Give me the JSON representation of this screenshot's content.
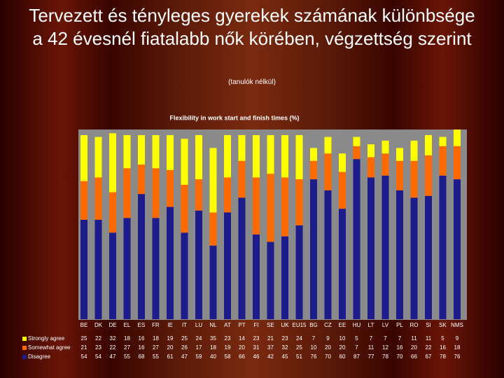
{
  "header": {
    "title": "Tervezett és tényleges gyerekek számának különbsége a 42 évesnél fiatalabb nők körében, végzettség szerint",
    "subtitle": "(tanulók nélkül)"
  },
  "chart_data": {
    "type": "bar",
    "stacked": true,
    "title": "Flexibility in work start and finish times (%)",
    "categories": [
      "BE",
      "DK",
      "DE",
      "EL",
      "ES",
      "FR",
      "IE",
      "IT",
      "LU",
      "NL",
      "AT",
      "PT",
      "FI",
      "SE",
      "UK",
      "EU15",
      "BG",
      "CZ",
      "EE",
      "HU",
      "LT",
      "LV",
      "PL",
      "RO",
      "SI",
      "SK",
      "NMS"
    ],
    "ylim": [
      0,
      100
    ],
    "series": [
      {
        "name": "Disagree",
        "color": "#1c1c8a",
        "values": [
          54,
          54,
          47,
          55,
          68,
          55,
          61,
          47,
          59,
          40,
          58,
          66,
          46,
          42,
          45,
          51,
          76,
          70,
          60,
          87,
          77,
          78,
          70,
          66,
          67,
          78,
          76
        ]
      },
      {
        "name": "Somewhat agree",
        "color": "#ff6a00",
        "values": [
          21,
          23,
          22,
          27,
          16,
          27,
          20,
          26,
          17,
          18,
          19,
          20,
          31,
          37,
          32,
          25,
          10,
          20,
          20,
          7,
          11,
          12,
          16,
          20,
          22,
          16,
          18
        ]
      },
      {
        "name": "Strongly agree",
        "color": "#ffff00",
        "values": [
          25,
          22,
          32,
          18,
          16,
          18,
          19,
          25,
          24,
          35,
          23,
          14,
          23,
          21,
          23,
          24,
          7,
          9,
          10,
          5,
          7,
          7,
          7,
          11,
          11,
          5,
          9
        ]
      }
    ]
  }
}
